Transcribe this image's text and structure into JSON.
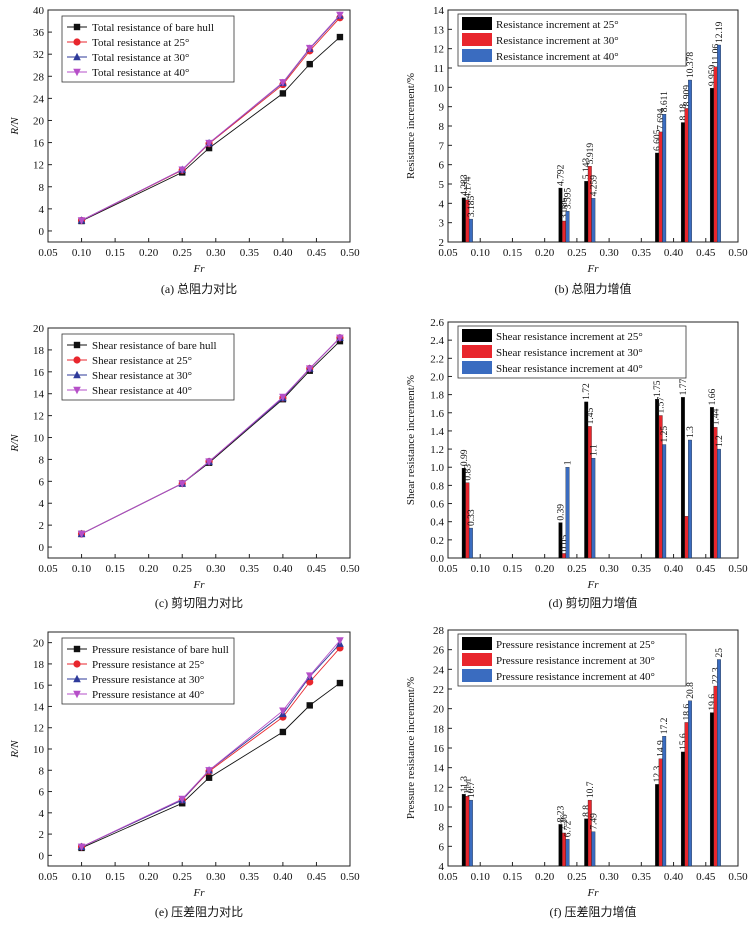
{
  "colors": {
    "bare": "#111111",
    "deg25": "#e8262d",
    "deg30": "#2e3a9a",
    "deg40": "#b64fc8",
    "bar25": "#000000",
    "bar30": "#e8262d",
    "bar40": "#3a6cc0"
  },
  "chart_data": [
    {
      "id": "a",
      "type": "line",
      "panel_title": "(a) 总阻力对比",
      "xlabel": "Fr",
      "ylabel": "R/N",
      "xlim": [
        0.05,
        0.5
      ],
      "ylim": [
        -2,
        40
      ],
      "xticks": [
        0.05,
        0.1,
        0.15,
        0.2,
        0.25,
        0.3,
        0.35,
        0.4,
        0.45,
        0.5
      ],
      "yticks": [
        0,
        4,
        8,
        12,
        16,
        20,
        24,
        28,
        32,
        36,
        40
      ],
      "xtick_labels": [
        "0.05",
        "0.10",
        "0.15",
        "0.20",
        "0.25",
        "0.30",
        "0.35",
        "0.40",
        "0.45",
        "0.50"
      ],
      "ytick_labels": [
        "0",
        "4",
        "8",
        "12",
        "16",
        "20",
        "24",
        "28",
        "32",
        "36",
        "40"
      ],
      "legend_position": "top-left",
      "x": [
        0.1,
        0.25,
        0.29,
        0.4,
        0.44,
        0.485
      ],
      "series": [
        {
          "name": "Total resistance of bare hull",
          "marker": "square",
          "color_key": "bare",
          "values": [
            1.8,
            10.6,
            15.0,
            24.9,
            30.2,
            35.1
          ]
        },
        {
          "name": "Total resistance at 25°",
          "marker": "circle",
          "color_key": "deg25",
          "values": [
            1.9,
            11.0,
            15.8,
            26.5,
            32.6,
            38.6
          ]
        },
        {
          "name": "Total resistance at 30°",
          "marker": "triangle-up",
          "color_key": "deg30",
          "values": [
            1.9,
            11.1,
            15.9,
            26.8,
            33.0,
            39.0
          ]
        },
        {
          "name": "Total resistance at 40°",
          "marker": "triangle-down",
          "color_key": "deg40",
          "values": [
            1.9,
            11.1,
            15.9,
            26.9,
            33.1,
            39.1
          ]
        }
      ]
    },
    {
      "id": "b",
      "type": "bar",
      "panel_title": "(b) 总阻力增值",
      "xlabel": "Fr",
      "ylabel": "Resistance increment/%",
      "xlim": [
        0.05,
        0.5
      ],
      "ylim": [
        2,
        14
      ],
      "xticks": [
        0.05,
        0.1,
        0.15,
        0.2,
        0.25,
        0.3,
        0.35,
        0.4,
        0.45,
        0.5
      ],
      "yticks": [
        2,
        3,
        4,
        5,
        6,
        7,
        8,
        9,
        10,
        11,
        12,
        13,
        14
      ],
      "xtick_labels": [
        "0.05",
        "0.10",
        "0.15",
        "0.20",
        "0.25",
        "0.30",
        "0.35",
        "0.40",
        "0.45",
        "0.50"
      ],
      "ytick_labels": [
        "2",
        "3",
        "4",
        "5",
        "6",
        "7",
        "8",
        "9",
        "10",
        "11",
        "12",
        "13",
        "14"
      ],
      "legend_position": "top-left",
      "bar_width": 0.0055,
      "group_centers": [
        0.08,
        0.23,
        0.27,
        0.38,
        0.42,
        0.465
      ],
      "series": [
        {
          "name": "Resistance increment at 25°",
          "color_key": "bar25",
          "values": [
            4.283,
            4.792,
            5.143,
            6.605,
            8.18,
            9.959
          ],
          "labels": [
            "4.283",
            "4.792",
            "5.143",
            "6.605",
            "8.18",
            "9.959"
          ]
        },
        {
          "name": "Resistance increment at 30°",
          "color_key": "bar30",
          "values": [
            4.174,
            3.086,
            5.919,
            7.694,
            8.909,
            11.06
          ],
          "labels": [
            "4.174",
            "3.086",
            "5.919",
            "7.694",
            "8.909",
            "11.06"
          ]
        },
        {
          "name": "Resistance increment at 40°",
          "color_key": "bar40",
          "values": [
            3.185,
            3.595,
            4.259,
            8.611,
            10.378,
            12.19
          ],
          "labels": [
            "3.185",
            "3.595",
            "4.259",
            "8.611",
            "10.378",
            "12.19"
          ]
        }
      ]
    },
    {
      "id": "c",
      "type": "line",
      "panel_title": "(c) 剪切阻力对比",
      "xlabel": "Fr",
      "ylabel": "R/N",
      "xlim": [
        0.05,
        0.5
      ],
      "ylim": [
        -1,
        20
      ],
      "xticks": [
        0.05,
        0.1,
        0.15,
        0.2,
        0.25,
        0.3,
        0.35,
        0.4,
        0.45,
        0.5
      ],
      "yticks": [
        0,
        2,
        4,
        6,
        8,
        10,
        12,
        14,
        16,
        18,
        20
      ],
      "xtick_labels": [
        "0.05",
        "0.10",
        "0.15",
        "0.20",
        "0.25",
        "0.30",
        "0.35",
        "0.40",
        "0.45",
        "0.50"
      ],
      "ytick_labels": [
        "0",
        "2",
        "4",
        "6",
        "8",
        "10",
        "12",
        "14",
        "16",
        "18",
        "20"
      ],
      "legend_position": "top-left",
      "x": [
        0.1,
        0.25,
        0.29,
        0.4,
        0.44,
        0.485
      ],
      "series": [
        {
          "name": "Shear resistance of bare hull",
          "marker": "square",
          "color_key": "bare",
          "values": [
            1.2,
            5.8,
            7.7,
            13.5,
            16.1,
            18.8
          ]
        },
        {
          "name": "Shear resistance at 25°",
          "marker": "circle",
          "color_key": "deg25",
          "values": [
            1.2,
            5.8,
            7.8,
            13.6,
            16.3,
            19.1
          ]
        },
        {
          "name": "Shear resistance at 30°",
          "marker": "triangle-up",
          "color_key": "deg30",
          "values": [
            1.2,
            5.8,
            7.8,
            13.6,
            16.3,
            19.1
          ]
        },
        {
          "name": "Shear resistance at 40°",
          "marker": "triangle-down",
          "color_key": "deg40",
          "values": [
            1.2,
            5.8,
            7.8,
            13.7,
            16.3,
            19.1
          ]
        }
      ]
    },
    {
      "id": "d",
      "type": "bar",
      "panel_title": "(d) 剪切阻力增值",
      "xlabel": "Fr",
      "ylabel": "Shear resistance increment/%",
      "xlim": [
        0.05,
        0.5
      ],
      "ylim": [
        0,
        2.6
      ],
      "xticks": [
        0.05,
        0.1,
        0.15,
        0.2,
        0.25,
        0.3,
        0.35,
        0.4,
        0.45,
        0.5
      ],
      "yticks": [
        0,
        0.2,
        0.4,
        0.6,
        0.8,
        1.0,
        1.2,
        1.4,
        1.6,
        1.8,
        2.0,
        2.2,
        2.4,
        2.6
      ],
      "xtick_labels": [
        "0.05",
        "0.10",
        "0.15",
        "0.20",
        "0.25",
        "0.30",
        "0.35",
        "0.40",
        "0.45",
        "0.50"
      ],
      "ytick_labels": [
        "0.0",
        "0.2",
        "0.4",
        "0.6",
        "0.8",
        "1.0",
        "1.2",
        "1.4",
        "1.6",
        "1.8",
        "2.0",
        "2.2",
        "2.4",
        "2.6"
      ],
      "legend_position": "top-left",
      "bar_width": 0.0055,
      "group_centers": [
        0.08,
        0.23,
        0.27,
        0.38,
        0.42,
        0.465
      ],
      "series": [
        {
          "name": "Shear resistance increment at 25°",
          "color_key": "bar25",
          "values": [
            0.99,
            0.39,
            1.72,
            1.75,
            1.77,
            1.66
          ],
          "labels": [
            "0.99",
            "0.39",
            "1.72",
            "1.75",
            "1.77",
            "1.66"
          ]
        },
        {
          "name": "Shear resistance increment at 30°",
          "color_key": "bar30",
          "values": [
            0.83,
            0.05,
            1.45,
            1.57,
            0.46,
            1.44
          ],
          "labels": [
            "0.83",
            "0.05",
            "1.45",
            "1.57",
            "",
            "1.44"
          ]
        },
        {
          "name": "Shear resistance increment at 40°",
          "color_key": "bar40",
          "values": [
            0.33,
            1.0,
            1.1,
            1.25,
            1.3,
            1.2
          ],
          "labels": [
            "0.33",
            "1",
            "1.1",
            "1.25",
            "1.3",
            "1.2"
          ]
        }
      ]
    },
    {
      "id": "e",
      "type": "line",
      "panel_title": "(e) 压差阻力对比",
      "xlabel": "Fr",
      "ylabel": "R/N",
      "xlim": [
        0.05,
        0.5
      ],
      "ylim": [
        -1,
        21
      ],
      "xticks": [
        0.05,
        0.1,
        0.15,
        0.2,
        0.25,
        0.3,
        0.35,
        0.4,
        0.45,
        0.5
      ],
      "yticks": [
        0,
        2,
        4,
        6,
        8,
        10,
        12,
        14,
        16,
        18,
        20
      ],
      "xtick_labels": [
        "0.05",
        "0.10",
        "0.15",
        "0.20",
        "0.25",
        "0.30",
        "0.35",
        "0.40",
        "0.45",
        "0.50"
      ],
      "ytick_labels": [
        "0",
        "2",
        "4",
        "6",
        "8",
        "10",
        "12",
        "14",
        "16",
        "18",
        "20"
      ],
      "legend_position": "top-left",
      "x": [
        0.1,
        0.25,
        0.29,
        0.4,
        0.44,
        0.485
      ],
      "series": [
        {
          "name": "Pressure resistance of bare hull",
          "marker": "square",
          "color_key": "bare",
          "values": [
            0.7,
            4.9,
            7.3,
            11.6,
            14.1,
            16.2
          ]
        },
        {
          "name": "Pressure resistance at 25°",
          "marker": "circle",
          "color_key": "deg25",
          "values": [
            0.8,
            5.2,
            7.9,
            13.0,
            16.3,
            19.5
          ]
        },
        {
          "name": "Pressure resistance at 30°",
          "marker": "triangle-up",
          "color_key": "deg30",
          "values": [
            0.8,
            5.2,
            8.0,
            13.3,
            16.8,
            19.9
          ]
        },
        {
          "name": "Pressure resistance at 40°",
          "marker": "triangle-down",
          "color_key": "deg40",
          "values": [
            0.8,
            5.3,
            8.0,
            13.6,
            16.9,
            20.2
          ]
        }
      ]
    },
    {
      "id": "f",
      "type": "bar",
      "panel_title": "(f) 压差阻力增值",
      "xlabel": "Fr",
      "ylabel": "Pressure resistance increment/%",
      "xlim": [
        0.05,
        0.5
      ],
      "ylim": [
        4,
        28
      ],
      "xticks": [
        0.05,
        0.1,
        0.15,
        0.2,
        0.25,
        0.3,
        0.35,
        0.4,
        0.45,
        0.5
      ],
      "yticks": [
        4,
        6,
        8,
        10,
        12,
        14,
        16,
        18,
        20,
        22,
        24,
        26,
        28
      ],
      "xtick_labels": [
        "0.05",
        "0.10",
        "0.15",
        "0.20",
        "0.25",
        "0.30",
        "0.35",
        "0.40",
        "0.45",
        "0.50"
      ],
      "ytick_labels": [
        "4",
        "6",
        "8",
        "10",
        "12",
        "14",
        "16",
        "18",
        "20",
        "22",
        "24",
        "26",
        "28"
      ],
      "legend_position": "top-left",
      "bar_width": 0.0055,
      "group_centers": [
        0.08,
        0.23,
        0.27,
        0.38,
        0.42,
        0.465
      ],
      "series": [
        {
          "name": "Pressure resistance increment at 25°",
          "color_key": "bar25",
          "values": [
            11.3,
            8.23,
            8.8,
            12.3,
            15.6,
            19.6
          ],
          "labels": [
            "11.3",
            "8.23",
            "8.8",
            "12.3",
            "15.6",
            "19.6"
          ]
        },
        {
          "name": "Pressure resistance increment at 30°",
          "color_key": "bar30",
          "values": [
            11.1,
            7.36,
            10.7,
            14.9,
            18.6,
            22.3
          ],
          "labels": [
            "11.1",
            "7.36",
            "10.7",
            "14.9",
            "18.6",
            "22.3"
          ]
        },
        {
          "name": "Pressure resistance increment at 40°",
          "color_key": "bar40",
          "values": [
            10.7,
            6.72,
            7.49,
            17.2,
            20.8,
            25.0
          ],
          "labels": [
            "10.7",
            "6.72",
            "7.49",
            "17.2",
            "20.8",
            "25"
          ]
        }
      ]
    }
  ]
}
